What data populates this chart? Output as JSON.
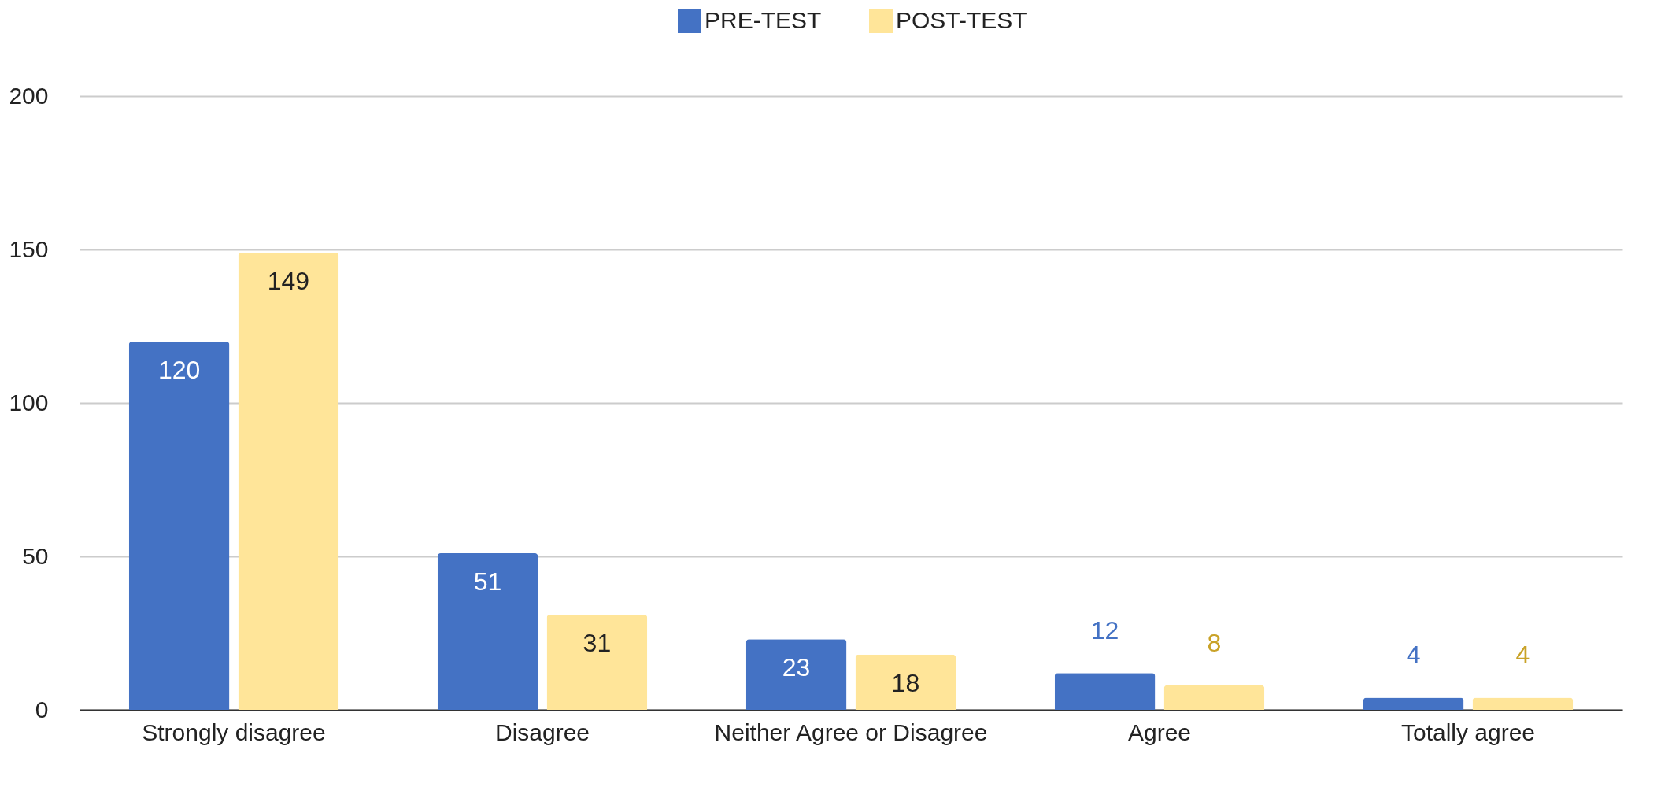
{
  "chart_data": {
    "type": "bar",
    "categories": [
      "Strongly disagree",
      "Disagree",
      "Neither Agree or Disagree",
      "Agree",
      "Totally agree"
    ],
    "series": [
      {
        "name": "PRE-TEST",
        "color": "#4472c4",
        "values": [
          120,
          51,
          23,
          12,
          4
        ]
      },
      {
        "name": "POST-TEST",
        "color": "#ffe599",
        "values": [
          149,
          31,
          18,
          8,
          4
        ]
      }
    ],
    "ylim": [
      0,
      200
    ],
    "yticks": [
      0,
      50,
      100,
      150,
      200
    ],
    "grid": "y",
    "legend": "top",
    "data_labels": true
  }
}
